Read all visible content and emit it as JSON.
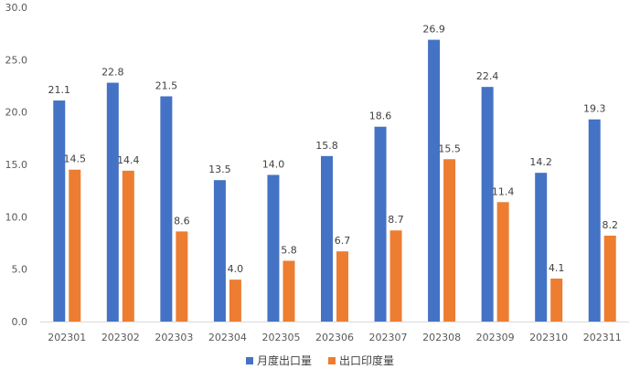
{
  "chart_data": {
    "type": "bar",
    "categories": [
      "202301",
      "202302",
      "202303",
      "202304",
      "202305",
      "202306",
      "202307",
      "202308",
      "202309",
      "202310",
      "202311"
    ],
    "series": [
      {
        "name": "月度出口量",
        "color": "#4472C4",
        "values": [
          21.1,
          22.8,
          21.5,
          13.5,
          14.0,
          15.8,
          18.6,
          26.9,
          22.4,
          14.2,
          19.3
        ]
      },
      {
        "name": "出口印度量",
        "color": "#ED7D31",
        "values": [
          14.5,
          14.4,
          8.6,
          4.0,
          5.8,
          6.7,
          8.7,
          15.5,
          11.4,
          4.1,
          8.2
        ]
      }
    ],
    "ylim": [
      0,
      30
    ],
    "yticks": [
      0,
      5,
      10,
      15,
      20,
      25,
      30
    ],
    "grid": false,
    "legend_position": "bottom",
    "data_labels": true,
    "value_decimals": 1
  }
}
